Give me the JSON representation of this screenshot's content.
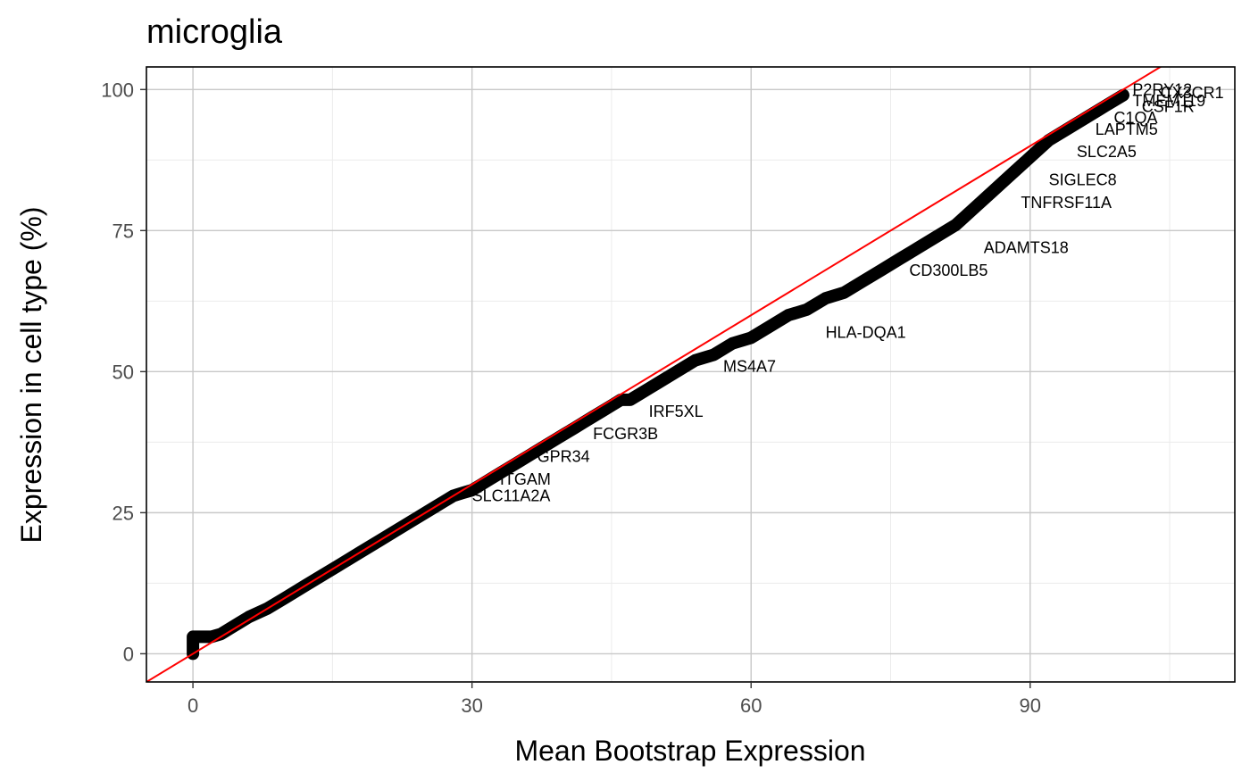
{
  "chart_data": {
    "type": "scatter",
    "title": "microglia",
    "xlabel": "Mean Bootstrap Expression",
    "ylabel": "Expression in cell type (%)",
    "xlim": [
      -5,
      112
    ],
    "ylim": [
      -5,
      104
    ],
    "xticks": [
      0,
      30,
      60,
      90
    ],
    "yticks": [
      0,
      25,
      50,
      75,
      100
    ],
    "xtick_labels": [
      "0",
      "30",
      "60",
      "90"
    ],
    "ytick_labels": [
      "0",
      "25",
      "50",
      "75",
      "100"
    ],
    "grid": true,
    "reference_line": {
      "slope": 1,
      "intercept": 0,
      "color": "#ff0000"
    },
    "point_color": "#000000",
    "series": [
      {
        "x": [
          0,
          0,
          0,
          0,
          1,
          2,
          3,
          4,
          5,
          6,
          8,
          10,
          12,
          14,
          16,
          18,
          20,
          22,
          24,
          26,
          27,
          28,
          29,
          30,
          31,
          32,
          33,
          34,
          35,
          36,
          37,
          38,
          39,
          40,
          41,
          42,
          43,
          44,
          45,
          46,
          47,
          48,
          49,
          50,
          52,
          54,
          56,
          58,
          60,
          62,
          64,
          66,
          68,
          70,
          72,
          74,
          76,
          78,
          80,
          82,
          84,
          86,
          88,
          90,
          92,
          94,
          96,
          98,
          100
        ],
        "y": [
          0,
          1,
          2,
          3,
          3,
          3,
          3.5,
          4.5,
          5.5,
          6.5,
          8,
          10,
          12,
          14,
          16,
          18,
          20,
          22,
          24,
          26,
          27,
          28,
          28.5,
          29,
          30,
          31,
          32,
          33,
          34,
          35,
          36,
          37,
          38,
          39,
          40,
          41,
          42,
          43,
          44,
          45,
          45,
          46,
          47,
          48,
          50,
          52,
          53,
          55,
          56,
          58,
          60,
          61,
          63,
          64,
          66,
          68,
          70,
          72,
          74,
          76,
          79,
          82,
          85,
          88,
          91,
          93,
          95,
          97,
          99
        ]
      }
    ],
    "labels": [
      {
        "text": "P2RY12",
        "x": 101,
        "y": 99
      },
      {
        "text": "CX3CR1",
        "x": 104,
        "y": 98.5
      },
      {
        "text": "TMEM119",
        "x": 101,
        "y": 97
      },
      {
        "text": "CSF1R",
        "x": 102,
        "y": 96
      },
      {
        "text": "C1QA",
        "x": 99,
        "y": 94
      },
      {
        "text": "LAPTM5",
        "x": 97,
        "y": 92
      },
      {
        "text": "SLC2A5",
        "x": 95,
        "y": 88
      },
      {
        "text": "SIGLEC8",
        "x": 92,
        "y": 83
      },
      {
        "text": "TNFRSF11A",
        "x": 89,
        "y": 79
      },
      {
        "text": "ADAMTS18",
        "x": 85,
        "y": 71
      },
      {
        "text": "CD300LB5",
        "x": 77,
        "y": 67
      },
      {
        "text": "HLA-DQA1",
        "x": 68,
        "y": 56
      },
      {
        "text": "MS4A7",
        "x": 57,
        "y": 50
      },
      {
        "text": "IRF5XL",
        "x": 49,
        "y": 42
      },
      {
        "text": "FCGR3B",
        "x": 43,
        "y": 38
      },
      {
        "text": "GPR34",
        "x": 37,
        "y": 34
      },
      {
        "text": "ITGAM",
        "x": 33,
        "y": 30
      },
      {
        "text": "SLC11A2A",
        "x": 30,
        "y": 27
      }
    ]
  }
}
